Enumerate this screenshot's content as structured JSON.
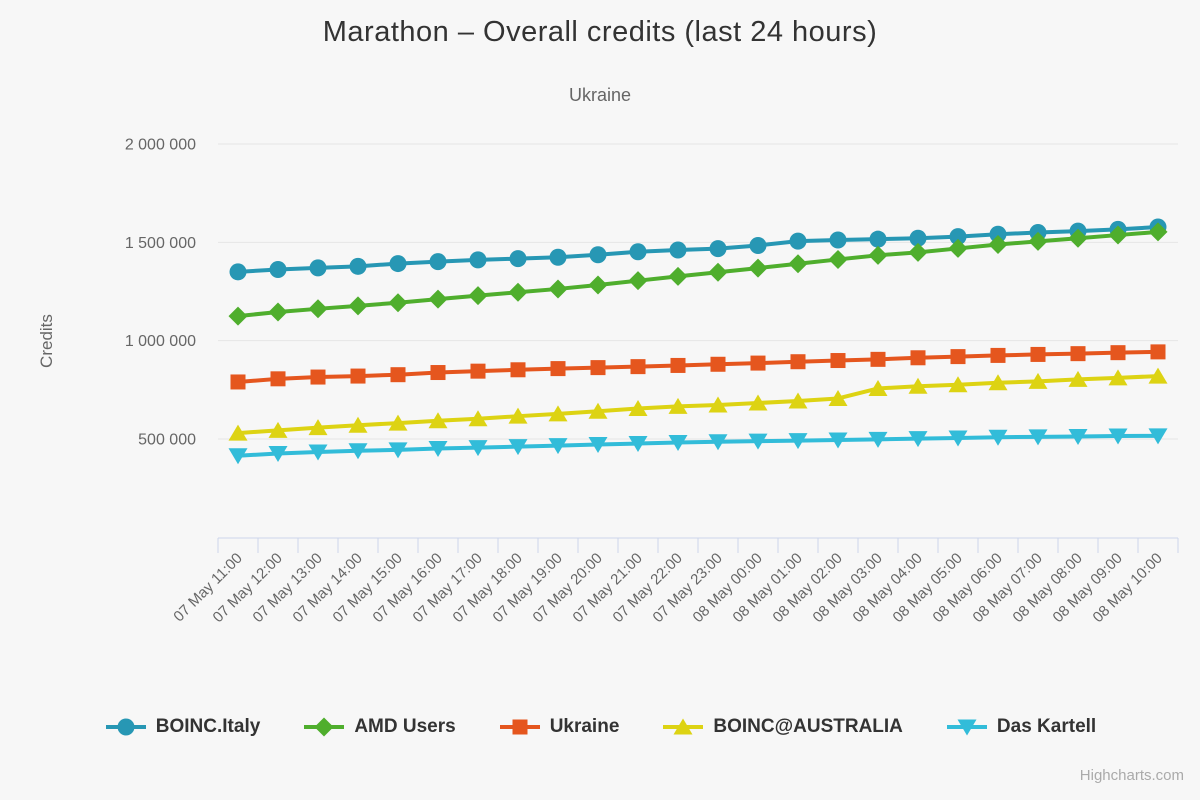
{
  "credits_label": "Highcharts.com",
  "theme": {
    "background": "#f7f7f7",
    "grid_color": "#e6e6e6",
    "axis_line_color": "#ccd6eb",
    "title_color": "#333333",
    "subtitle_color": "#666666",
    "axis_label_color": "#666666",
    "legend_text_color": "#333333",
    "credits_color": "#aaaaaa"
  },
  "chart_data": {
    "type": "line",
    "title": "Marathon – Overall credits (last 24 hours)",
    "subtitle": "Ukraine",
    "xlabel": "",
    "ylabel": "Credits",
    "ylim": [
      0,
      2000000
    ],
    "grid": true,
    "legend_position": "bottom",
    "yticks": [
      500000,
      1000000,
      1500000,
      2000000
    ],
    "ytick_labels": [
      "500 000",
      "1 000 000",
      "1 500 000",
      "2 000 000"
    ],
    "categories": [
      "07 May 11:00",
      "07 May 12:00",
      "07 May 13:00",
      "07 May 14:00",
      "07 May 15:00",
      "07 May 16:00",
      "07 May 17:00",
      "07 May 18:00",
      "07 May 19:00",
      "07 May 20:00",
      "07 May 21:00",
      "07 May 22:00",
      "07 May 23:00",
      "08 May 00:00",
      "08 May 01:00",
      "08 May 02:00",
      "08 May 03:00",
      "08 May 04:00",
      "08 May 05:00",
      "08 May 06:00",
      "08 May 07:00",
      "08 May 08:00",
      "08 May 09:00",
      "08 May 10:00"
    ],
    "series": [
      {
        "name": "BOINC.Italy",
        "color": "#2797b4",
        "marker": "circle",
        "values": [
          1350000,
          1362000,
          1370000,
          1378000,
          1392000,
          1402000,
          1411000,
          1417000,
          1424000,
          1437000,
          1452000,
          1461000,
          1468000,
          1484000,
          1506000,
          1512000,
          1516000,
          1521000,
          1529000,
          1541000,
          1550000,
          1557000,
          1566000,
          1578000
        ]
      },
      {
        "name": "AMD Users",
        "color": "#4fae2d",
        "marker": "diamond",
        "values": [
          1125000,
          1146000,
          1162000,
          1177000,
          1193000,
          1211000,
          1229000,
          1246000,
          1263000,
          1283000,
          1305000,
          1327000,
          1348000,
          1369000,
          1391000,
          1413000,
          1434000,
          1449000,
          1469000,
          1489000,
          1505000,
          1521000,
          1537000,
          1553000
        ]
      },
      {
        "name": "Ukraine",
        "color": "#e5561e",
        "marker": "square",
        "values": [
          790000,
          806000,
          815000,
          820000,
          827000,
          838000,
          845000,
          852000,
          858000,
          863000,
          868000,
          874000,
          880000,
          886000,
          893000,
          899000,
          905000,
          913000,
          919000,
          925000,
          930000,
          934000,
          939000,
          943000
        ]
      },
      {
        "name": "BOINC@AUSTRALIA",
        "color": "#ddd313",
        "marker": "triangle-up",
        "values": [
          530000,
          544000,
          558000,
          570000,
          581000,
          593000,
          603000,
          616000,
          628000,
          641000,
          655000,
          666000,
          673000,
          683000,
          693000,
          706000,
          757000,
          768000,
          776000,
          786000,
          793000,
          803000,
          811000,
          820000
        ]
      },
      {
        "name": "Das Kartell",
        "color": "#32bcd9",
        "marker": "triangle-down",
        "values": [
          415000,
          426000,
          434000,
          440000,
          445000,
          452000,
          456000,
          461000,
          466000,
          472000,
          477000,
          482000,
          486000,
          489000,
          492000,
          495000,
          498000,
          502000,
          505000,
          509000,
          511000,
          513000,
          515000,
          516000
        ]
      }
    ]
  }
}
